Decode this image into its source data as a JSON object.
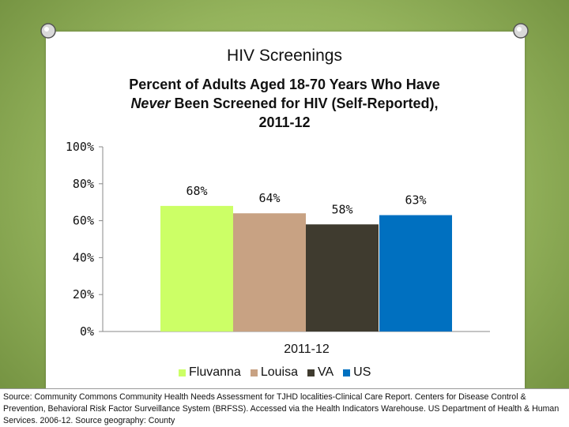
{
  "slide": {
    "title": "HIV Screenings"
  },
  "subtitle": {
    "line1": "Percent of Adults Aged 18-70 Years Who Have",
    "never": "Never",
    "line2_rest": " Been Screened for HIV (Self-Reported),",
    "line3": "2011-12"
  },
  "colors": {
    "Fluvanna": "#ccff66",
    "Louisa": "#c8a283",
    "VA": "#3f3b2f",
    "US": "#0070c0"
  },
  "chart_data": {
    "type": "bar",
    "categories": [
      "2011-12"
    ],
    "series": [
      {
        "name": "Fluvanna",
        "values": [
          68
        ],
        "label": "68%"
      },
      {
        "name": "Louisa",
        "values": [
          64
        ],
        "label": "64%"
      },
      {
        "name": "VA",
        "values": [
          58
        ],
        "label": "58%"
      },
      {
        "name": "US",
        "values": [
          63
        ],
        "label": "63%"
      }
    ],
    "title": "Percent of Adults Aged 18-70 Years Who Have Never Been Screened for HIV (Self-Reported), 2011-12",
    "xlabel": "2011-12",
    "ylabel": "",
    "ylim": [
      0,
      100
    ],
    "yticks": [
      0,
      20,
      40,
      60,
      80,
      100
    ],
    "ytick_labels": [
      "0%",
      "20%",
      "40%",
      "60%",
      "80%",
      "100%"
    ],
    "legend": "bottom"
  },
  "source": "Source: Community Commons Community Health Needs Assessment for TJHD localities-Clinical Care Report. Centers for Disease Control & Prevention, Behavioral Risk Factor Surveillance System (BRFSS). Accessed via the Health Indicators Warehouse. US Department of Health & Human Services. 2006-12. Source geography: County"
}
